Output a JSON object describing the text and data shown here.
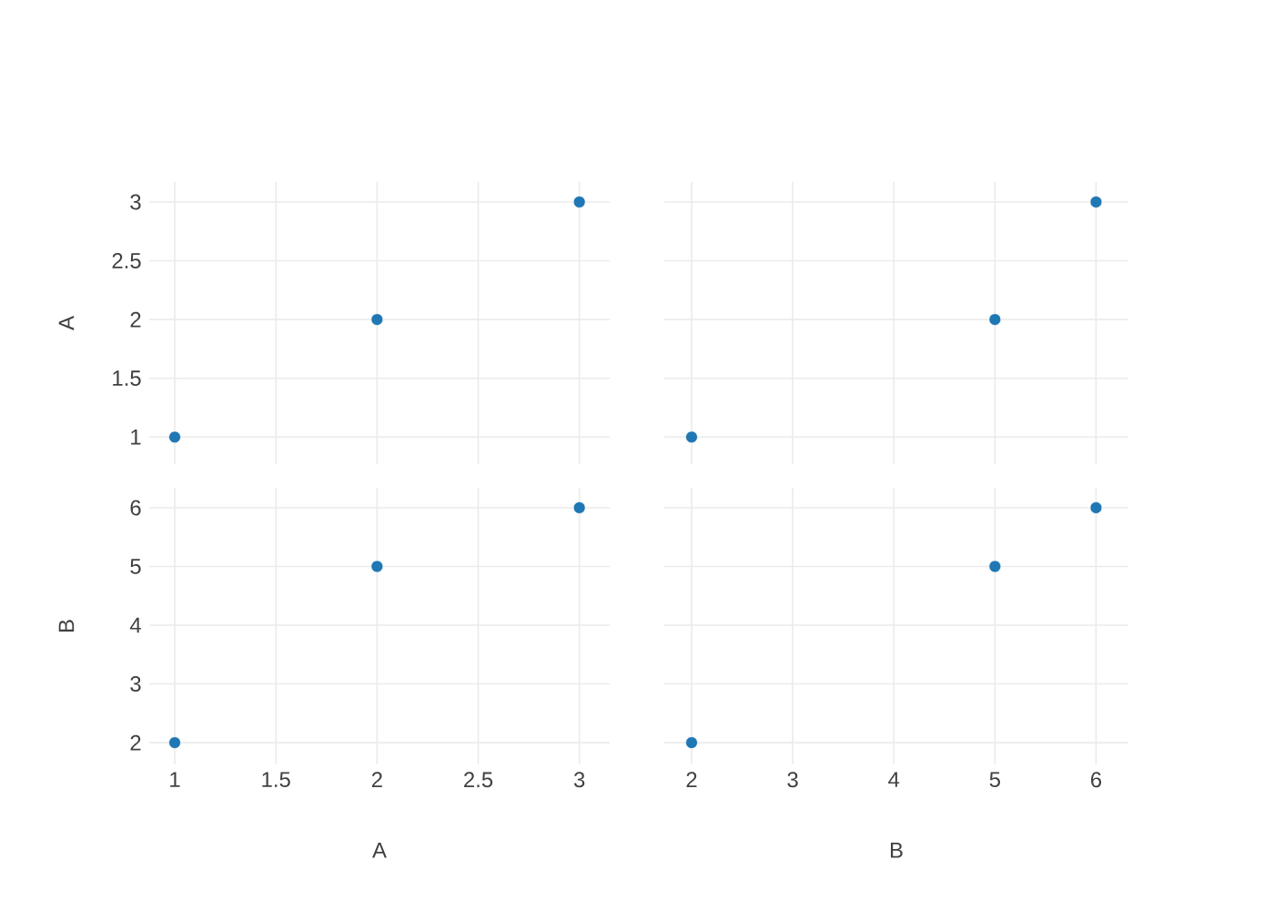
{
  "chart_data": [
    {
      "type": "scatter",
      "x": [
        1,
        2,
        3
      ],
      "values": [
        1,
        2,
        3
      ],
      "color": "#1f77b4",
      "xlim": [
        0.874,
        3.15
      ],
      "ylim": [
        0.77,
        3.17
      ],
      "xticks": [
        1,
        1.5,
        2,
        2.5,
        3
      ],
      "yticks": [
        1,
        1.5,
        2,
        2.5,
        3
      ],
      "ylabel": "A",
      "grid": true,
      "tick_labels": "y"
    },
    {
      "type": "scatter",
      "x": [
        2,
        5,
        6
      ],
      "values": [
        1,
        2,
        3
      ],
      "color": "#1f77b4",
      "xlim": [
        1.73,
        6.32
      ],
      "ylim": [
        0.77,
        3.17
      ],
      "xticks": [
        2,
        3,
        4,
        5,
        6
      ],
      "yticks": [
        1,
        1.5,
        2,
        2.5,
        3
      ],
      "grid": true,
      "tick_labels": false
    },
    {
      "type": "scatter",
      "x": [
        1,
        2,
        3
      ],
      "values": [
        2,
        5,
        6
      ],
      "color": "#1f77b4",
      "xlim": [
        0.874,
        3.15
      ],
      "ylim": [
        1.63,
        6.34
      ],
      "xticks": [
        1,
        1.5,
        2,
        2.5,
        3
      ],
      "yticks": [
        2,
        3,
        4,
        5,
        6
      ],
      "xlabel": "A",
      "ylabel": "B",
      "grid": true
    },
    {
      "type": "scatter",
      "x": [
        2,
        5,
        6
      ],
      "values": [
        2,
        5,
        6
      ],
      "color": "#1f77b4",
      "xlim": [
        1.73,
        6.32
      ],
      "ylim": [
        1.63,
        6.34
      ],
      "xticks": [
        2,
        3,
        4,
        5,
        6
      ],
      "yticks": [
        2,
        3,
        4,
        5,
        6
      ],
      "xlabel": "B",
      "grid": true,
      "tick_labels": "x"
    }
  ]
}
